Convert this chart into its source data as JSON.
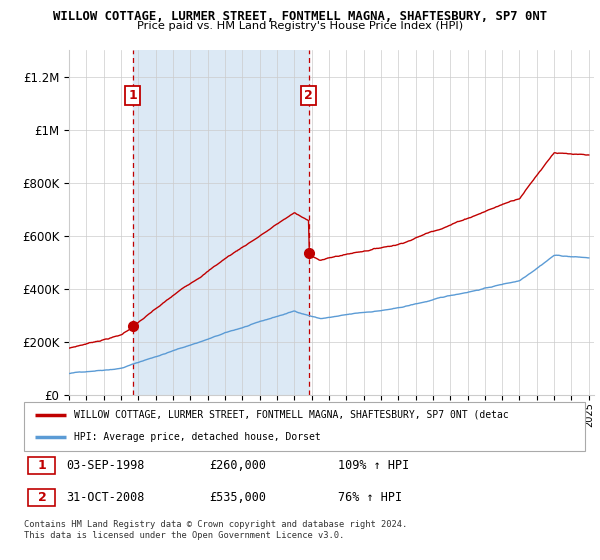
{
  "title": "WILLOW COTTAGE, LURMER STREET, FONTMELL MAGNA, SHAFTESBURY, SP7 0NT",
  "subtitle": "Price paid vs. HM Land Registry's House Price Index (HPI)",
  "ylim": [
    0,
    1300000
  ],
  "yticks": [
    0,
    200000,
    400000,
    600000,
    800000,
    1000000,
    1200000
  ],
  "ytick_labels": [
    "£0",
    "£200K",
    "£400K",
    "£600K",
    "£800K",
    "£1M",
    "£1.2M"
  ],
  "x_start_year": 1995,
  "x_end_year": 2025,
  "sale1_year": 1998.67,
  "sale1_price": 260000,
  "sale1_label": "1",
  "sale1_date": "03-SEP-1998",
  "sale1_pct": "109%",
  "sale2_year": 2008.83,
  "sale2_price": 535000,
  "sale2_label": "2",
  "sale2_date": "31-OCT-2008",
  "sale2_pct": "76%",
  "hpi_color": "#5b9bd5",
  "price_color": "#c00000",
  "shade_color": "#dce9f5",
  "legend_label_price": "WILLOW COTTAGE, LURMER STREET, FONTMELL MAGNA, SHAFTESBURY, SP7 0NT (detac",
  "legend_label_hpi": "HPI: Average price, detached house, Dorset",
  "footer1": "Contains HM Land Registry data © Crown copyright and database right 2024.",
  "footer2": "This data is licensed under the Open Government Licence v3.0."
}
